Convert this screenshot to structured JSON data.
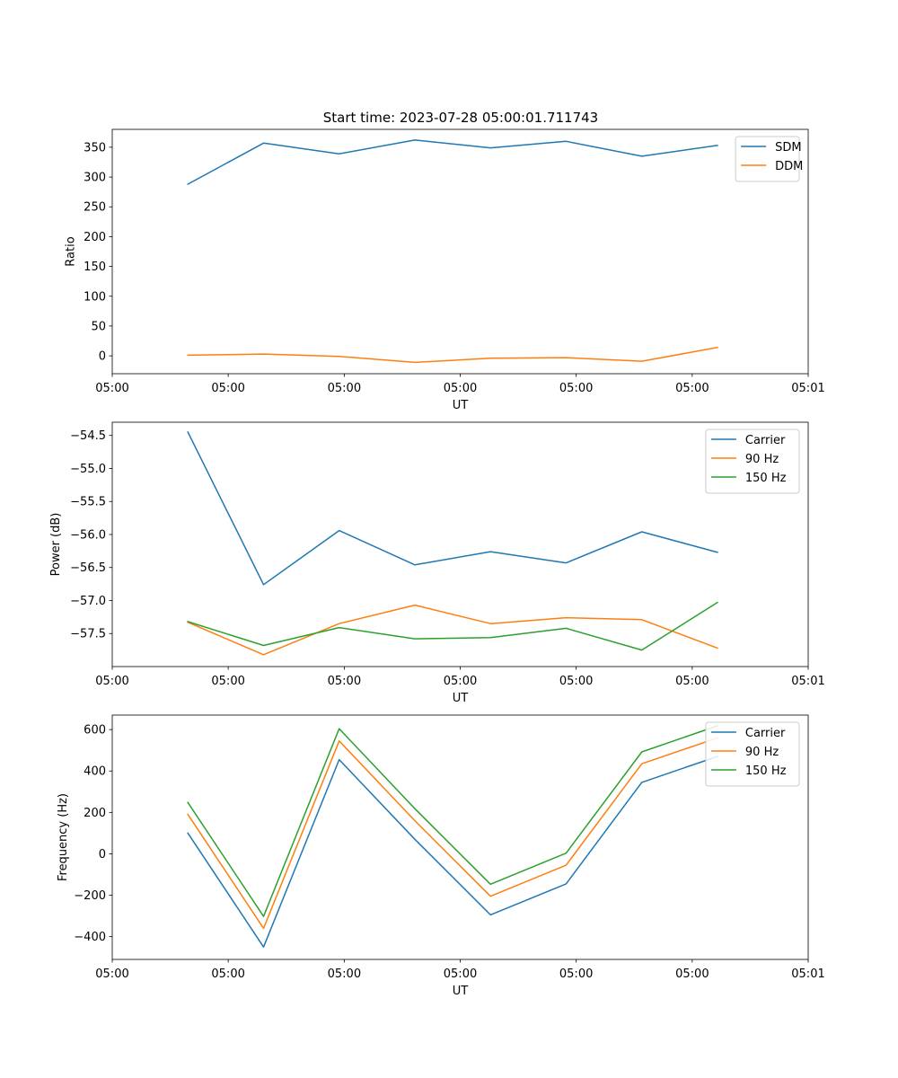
{
  "figure_title": "Start time: 2023-07-28 05:00:01.711743",
  "colors": {
    "c0": "#1f77b4",
    "c1": "#ff7f0e",
    "c2": "#2ca02c"
  },
  "chart_data": [
    {
      "type": "line",
      "xlabel": "UT",
      "ylabel": "Ratio",
      "legend_position": "top-right",
      "x": [
        1,
        2,
        3,
        4,
        5,
        6,
        7,
        8
      ],
      "xlim": [
        0,
        9.2
      ],
      "x_ticks": [
        0,
        1.533,
        3.067,
        4.6,
        6.133,
        7.667,
        9.2
      ],
      "x_tick_labels": [
        "05:00",
        "05:00",
        "05:00",
        "05:00",
        "05:00",
        "05:00",
        "05:01"
      ],
      "ylim": [
        -30,
        380
      ],
      "y_ticks": [
        0,
        50,
        100,
        150,
        200,
        250,
        300,
        350
      ],
      "y_tick_labels": [
        "0",
        "50",
        "100",
        "150",
        "200",
        "250",
        "300",
        "350"
      ],
      "series": [
        {
          "name": "SDM",
          "color": "#1f77b4",
          "values": [
            288,
            357,
            339,
            362,
            349,
            360,
            335,
            353
          ]
        },
        {
          "name": "DDM",
          "color": "#ff7f0e",
          "values": [
            1,
            3,
            -1,
            -11,
            -4,
            -3,
            -9,
            14
          ]
        }
      ]
    },
    {
      "type": "line",
      "xlabel": "UT",
      "ylabel": "Power (dB)",
      "legend_position": "top-right",
      "x": [
        1,
        2,
        3,
        4,
        5,
        6,
        7,
        8
      ],
      "xlim": [
        0,
        9.2
      ],
      "x_ticks": [
        0,
        1.533,
        3.067,
        4.6,
        6.133,
        7.667,
        9.2
      ],
      "x_tick_labels": [
        "05:00",
        "05:00",
        "05:00",
        "05:00",
        "05:00",
        "05:00",
        "05:01"
      ],
      "ylim": [
        -58.0,
        -54.3
      ],
      "y_ticks": [
        -57.5,
        -57.0,
        -56.5,
        -56.0,
        -55.5,
        -55.0,
        -54.5
      ],
      "y_tick_labels": [
        "−57.5",
        "−57.0",
        "−56.5",
        "−56.0",
        "−55.5",
        "−55.0",
        "−54.5"
      ],
      "series": [
        {
          "name": "Carrier",
          "color": "#1f77b4",
          "values": [
            -54.45,
            -56.76,
            -55.94,
            -56.46,
            -56.26,
            -56.43,
            -55.96,
            -56.27
          ]
        },
        {
          "name": "90 Hz",
          "color": "#ff7f0e",
          "values": [
            -57.33,
            -57.82,
            -57.35,
            -57.07,
            -57.35,
            -57.26,
            -57.29,
            -57.72
          ]
        },
        {
          "name": "150 Hz",
          "color": "#2ca02c",
          "values": [
            -57.32,
            -57.68,
            -57.41,
            -57.58,
            -57.56,
            -57.42,
            -57.75,
            -57.03
          ]
        }
      ]
    },
    {
      "type": "line",
      "xlabel": "UT",
      "ylabel": "Frequency (Hz)",
      "legend_position": "top-right",
      "x": [
        1,
        2,
        3,
        4,
        5,
        6,
        7,
        8
      ],
      "xlim": [
        0,
        9.2
      ],
      "x_ticks": [
        0,
        1.533,
        3.067,
        4.6,
        6.133,
        7.667,
        9.2
      ],
      "x_tick_labels": [
        "05:00",
        "05:00",
        "05:00",
        "05:00",
        "05:00",
        "05:00",
        "05:01"
      ],
      "ylim": [
        -510,
        670
      ],
      "y_ticks": [
        -400,
        -200,
        0,
        200,
        400,
        600
      ],
      "y_tick_labels": [
        "−400",
        "−200",
        "0",
        "200",
        "400",
        "600"
      ],
      "series": [
        {
          "name": "Carrier",
          "color": "#1f77b4",
          "values": [
            100,
            -450,
            455,
            70,
            -295,
            -145,
            345,
            470
          ]
        },
        {
          "name": "90 Hz",
          "color": "#ff7f0e",
          "values": [
            190,
            -360,
            545,
            160,
            -205,
            -55,
            435,
            560
          ]
        },
        {
          "name": "150 Hz",
          "color": "#2ca02c",
          "values": [
            248,
            -302,
            604,
            218,
            -147,
            3,
            492,
            618
          ]
        }
      ]
    }
  ]
}
